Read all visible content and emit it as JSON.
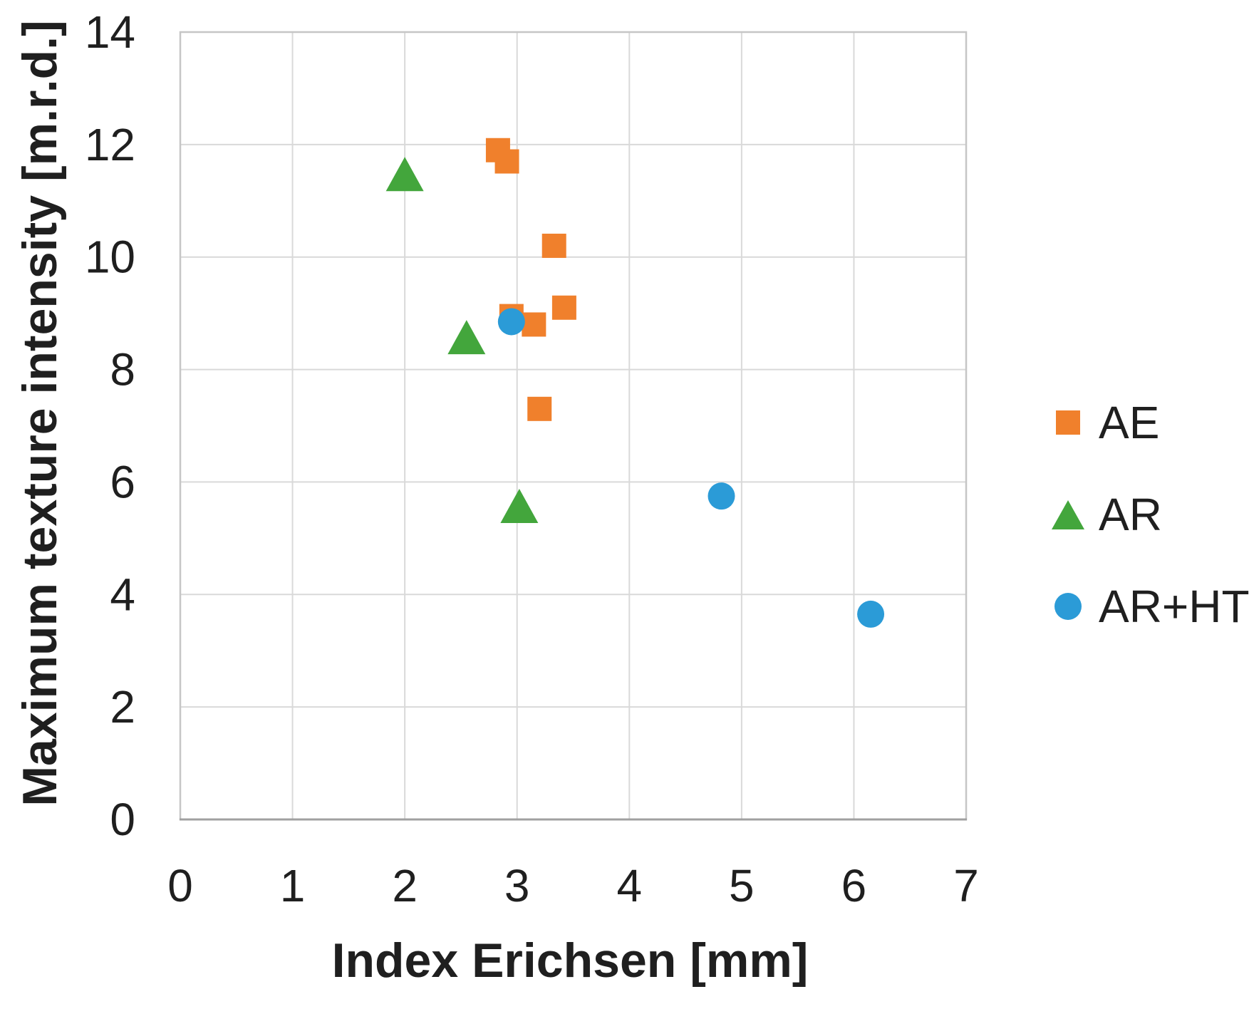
{
  "figure": {
    "background_color": "#ffffff",
    "text_color": "#1f1f1f",
    "gridline_color": "#d9d9d9",
    "plot_border_color": "#c6c6c6",
    "axis_line_color": "#a0a0a0"
  },
  "legend": {
    "position": "right",
    "items": [
      {
        "label": "AE",
        "marker": "square",
        "color": "#f0802c"
      },
      {
        "label": "AR",
        "marker": "triangle",
        "color": "#43a63c"
      },
      {
        "label": "AR+HT",
        "marker": "circle",
        "color": "#2b9bd7"
      }
    ]
  },
  "chart_data": {
    "type": "scatter",
    "title": "",
    "xlabel": "Index Erichsen [mm]",
    "ylabel": "Maximum texture intensity [m.r.d.]",
    "xlim": [
      0,
      7
    ],
    "ylim": [
      0,
      14
    ],
    "x_ticks": [
      0,
      1,
      2,
      3,
      4,
      5,
      6,
      7
    ],
    "y_ticks": [
      0,
      2,
      4,
      6,
      8,
      10,
      12,
      14
    ],
    "grid": true,
    "legend_position": "right",
    "series": [
      {
        "name": "AE",
        "marker": "square",
        "color": "#f0802c",
        "points": [
          [
            2.83,
            11.9
          ],
          [
            2.91,
            11.7
          ],
          [
            3.33,
            10.2
          ],
          [
            3.42,
            9.1
          ],
          [
            2.95,
            8.95
          ],
          [
            3.15,
            8.8
          ],
          [
            3.2,
            7.3
          ]
        ]
      },
      {
        "name": "AR",
        "marker": "triangle",
        "color": "#43a63c",
        "points": [
          [
            2.0,
            11.45
          ],
          [
            2.55,
            8.55
          ],
          [
            3.02,
            5.55
          ]
        ]
      },
      {
        "name": "AR+HT",
        "marker": "circle",
        "color": "#2b9bd7",
        "points": [
          [
            2.95,
            8.85
          ],
          [
            4.82,
            5.75
          ],
          [
            6.15,
            3.65
          ]
        ]
      }
    ]
  }
}
